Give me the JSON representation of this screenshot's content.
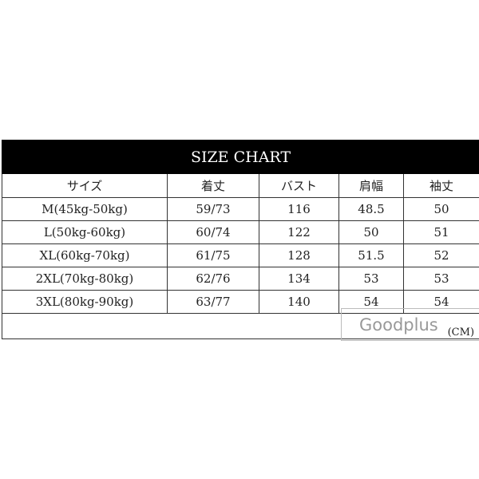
{
  "title": "SIZE CHART",
  "headers": [
    "サイズ",
    "着丈",
    "バスト",
    "肩幅",
    "袖丈"
  ],
  "rows": [
    [
      "M(45kg-50kg)",
      "59/73",
      "116",
      "48.5",
      "50"
    ],
    [
      "L(50kg-60kg)",
      "60/74",
      "122",
      "50",
      "51"
    ],
    [
      "XL(60kg-70kg)",
      "61/75",
      "128",
      "51.5",
      "52"
    ],
    [
      "2XL(70kg-80kg)",
      "62/76",
      "134",
      "53",
      "53"
    ],
    [
      "3XL(80kg-90kg)",
      "63/77",
      "140",
      "54",
      "54"
    ]
  ],
  "unit": "(CM)",
  "watermark": "Goodplus"
}
